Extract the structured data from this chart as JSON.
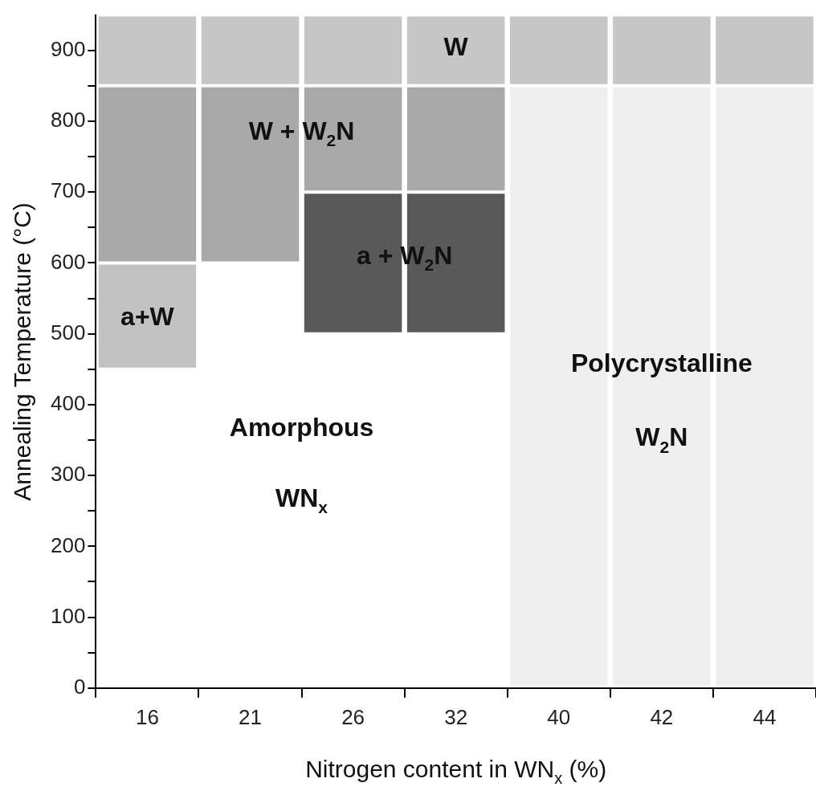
{
  "chart_data": {
    "type": "bar",
    "xlabel": "Nitrogen content in WN$_{x}$ (%)",
    "ylabel": "Annealing Temperature (°C)",
    "categories": [
      "16",
      "21",
      "26",
      "32",
      "40",
      "42",
      "44"
    ],
    "series": [
      {
        "name": "W",
        "color": "#c6c6c6",
        "base": [
          850,
          850,
          850,
          850,
          850,
          850,
          850
        ],
        "values": [
          100,
          100,
          100,
          100,
          100,
          100,
          100
        ]
      },
      {
        "name": "W + W$_{2}$N",
        "color": "#a9a9a9",
        "base": [
          600,
          600,
          700,
          700,
          null,
          null,
          null
        ],
        "values": [
          250,
          250,
          150,
          150,
          null,
          null,
          null
        ]
      },
      {
        "name": "a+W",
        "color": "#c2c2c2",
        "base": [
          450,
          null,
          null,
          null,
          null,
          null,
          null
        ],
        "values": [
          150,
          null,
          null,
          null,
          null,
          null,
          null
        ]
      },
      {
        "name": "a + W$_{2}$N",
        "color": "#595959",
        "base": [
          null,
          null,
          500,
          500,
          null,
          null,
          null
        ],
        "values": [
          null,
          null,
          200,
          200,
          null,
          null,
          null
        ]
      },
      {
        "name": "Polycrystalline W$_{2}$N",
        "color": "#efefef",
        "base": [
          null,
          null,
          null,
          null,
          0,
          0,
          0
        ],
        "values": [
          null,
          null,
          null,
          null,
          850,
          850,
          850
        ]
      }
    ],
    "ylim": [
      0,
      950
    ],
    "yticks": [
      0,
      {
        "value": 50,
        "label": null
      },
      100,
      {
        "value": 150,
        "label": null
      },
      200,
      {
        "value": 250,
        "label": null
      },
      300,
      {
        "value": 350,
        "label": null
      },
      400,
      {
        "value": 450,
        "label": null
      },
      500,
      {
        "value": 550,
        "label": null
      },
      600,
      {
        "value": 650,
        "label": null
      },
      700,
      {
        "value": 750,
        "label": null
      },
      800,
      {
        "value": 850,
        "label": null
      },
      900
    ],
    "annotations": [
      "Amorphous",
      "WN$_{x}$"
    ]
  }
}
